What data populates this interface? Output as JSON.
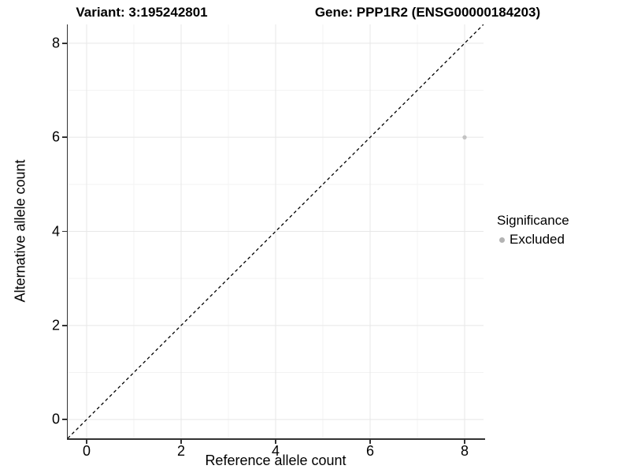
{
  "titles": {
    "left": "Variant: 3:195242801",
    "right": "Gene: PPP1R2 (ENSG00000184203)"
  },
  "chart_data": {
    "type": "scatter",
    "title_left": "Variant: 3:195242801",
    "title_right": "Gene: PPP1R2 (ENSG00000184203)",
    "xlabel": "Reference allele count",
    "ylabel": "Alternative allele count",
    "xlim": [
      -0.4,
      8.4
    ],
    "ylim": [
      -0.4,
      8.4
    ],
    "x_major_ticks": [
      0,
      2,
      4,
      6,
      8
    ],
    "y_major_ticks": [
      0,
      2,
      4,
      6,
      8
    ],
    "x_minor_ticks": [
      1,
      3,
      5,
      7
    ],
    "y_minor_ticks": [
      1,
      3,
      5,
      7
    ],
    "grid": "on",
    "points": [
      {
        "x": 8,
        "y": 6,
        "series": "Excluded"
      }
    ],
    "reference_line": {
      "kind": "identity",
      "equation": "y = x",
      "style": "dashed"
    },
    "legend": {
      "title": "Significance",
      "position": "right",
      "entries": [
        {
          "label": "Excluded",
          "marker": "circle",
          "color": "#bdbdbd"
        }
      ]
    },
    "colors": {
      "point": "#c3c3c3",
      "legend_marker": "#b3b3b3",
      "grid_major": "#e7e7e7",
      "grid_minor": "#f3f3f3",
      "axis_line": "#333333",
      "reference_line": "#000000",
      "text": "#000000",
      "background": "#ffffff"
    }
  }
}
